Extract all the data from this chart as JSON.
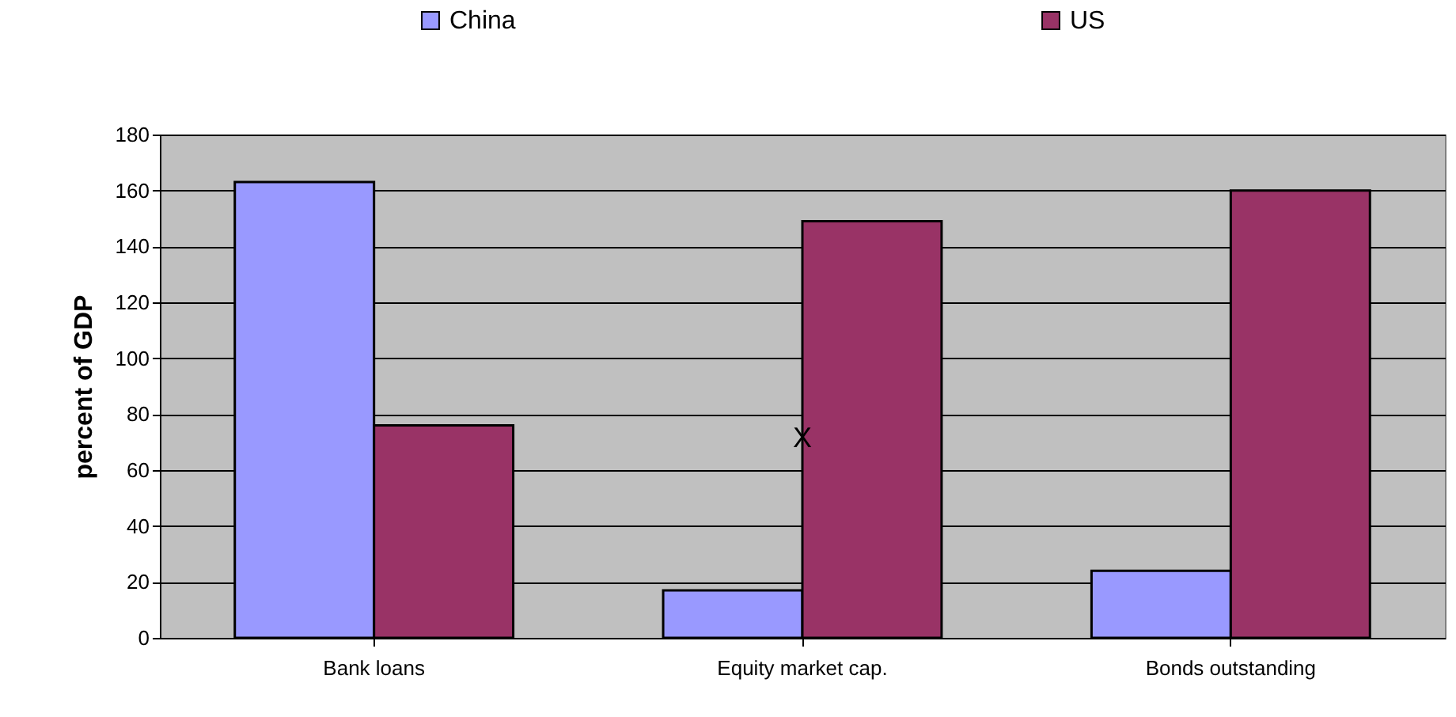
{
  "chart_data": {
    "type": "bar",
    "ylabel": "percent of GDP",
    "categories": [
      "Bank loans",
      "Equity market cap.",
      "Bonds outstanding"
    ],
    "series": [
      {
        "name": "China",
        "color": "#9999ff",
        "values": [
          163,
          17,
          24
        ]
      },
      {
        "name": "US",
        "color": "#993366",
        "values": [
          76,
          149,
          160
        ]
      }
    ],
    "ylim": [
      0,
      180
    ],
    "yticks": [
      0,
      20,
      40,
      60,
      80,
      100,
      120,
      140,
      160,
      180
    ],
    "grid": "y",
    "legend": "top",
    "annotations": [
      {
        "text": "X",
        "x": "Equity market cap.",
        "y": 71
      }
    ]
  }
}
